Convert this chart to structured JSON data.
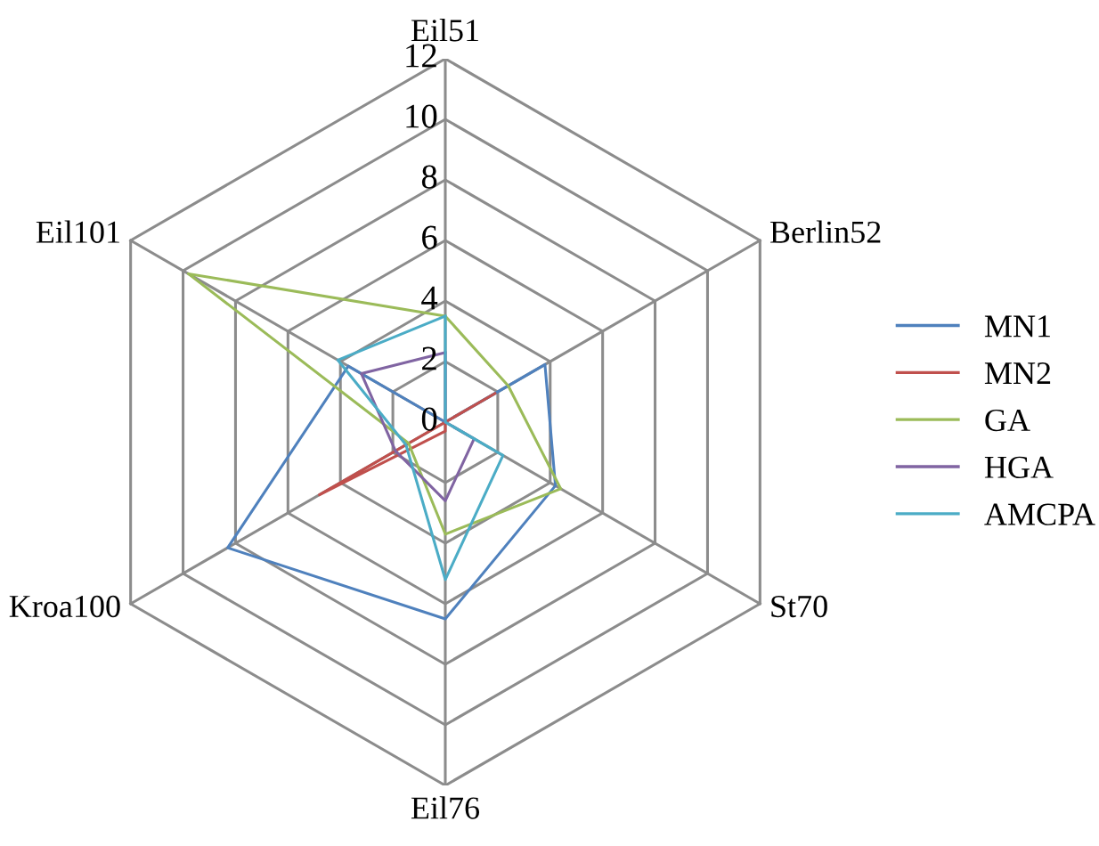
{
  "chart_data": {
    "type": "radar",
    "categories": [
      "Eil51",
      "Berlin52",
      "St70",
      "Eil76",
      "Kroa100",
      "Eil101"
    ],
    "ylim": [
      0,
      12
    ],
    "yticks": [
      0,
      2,
      4,
      6,
      8,
      10,
      12
    ],
    "grid": true,
    "legend": "right",
    "series": [
      {
        "name": "MN1",
        "color": "#4f81bd",
        "values": [
          0,
          3.8,
          4.2,
          6.5,
          8.3,
          3.7
        ]
      },
      {
        "name": "MN2",
        "color": "#c0504d",
        "values": [
          0,
          1.9,
          0,
          0.3,
          4.8,
          0
        ]
      },
      {
        "name": "GA",
        "color": "#9bbb59",
        "values": [
          3.5,
          2.4,
          4.4,
          3.7,
          1.4,
          9.8
        ]
      },
      {
        "name": "HGA",
        "color": "#8064a2",
        "values": [
          2.3,
          0,
          1.1,
          2.6,
          1.9,
          3.2
        ]
      },
      {
        "name": "AMCPA",
        "color": "#4bacc6",
        "values": [
          3.5,
          0,
          2.2,
          5.2,
          1.5,
          4.1
        ]
      }
    ]
  }
}
